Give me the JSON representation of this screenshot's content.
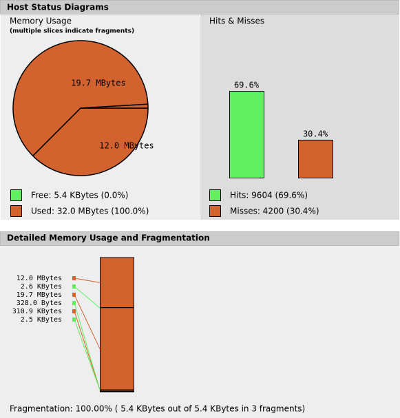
{
  "host_status": {
    "title": "Host Status Diagrams",
    "memory_usage": {
      "title": "Memory Usage",
      "subtitle": "(multiple slices indicate fragments)",
      "type": "pie",
      "slices": [
        {
          "label": "12.0 MBytes",
          "value": 12.0
        },
        {
          "label": "19.7 MBytes",
          "value": 19.7
        },
        {
          "label": null,
          "value": 0.3
        }
      ],
      "color": "#d2622e",
      "legend": [
        {
          "text": "Free: 5.4 KBytes (0.0%)",
          "color": "#60f060"
        },
        {
          "text": "Used: 32.0 MBytes (100.0%)",
          "color": "#d2622e"
        }
      ]
    },
    "hits_misses": {
      "title": "Hits & Misses",
      "type": "bar",
      "values": [
        69.6,
        30.4
      ],
      "value_labels": [
        "69.6%",
        "30.4%"
      ],
      "colors": [
        "#60f060",
        "#d2622e"
      ],
      "ylim": [
        0,
        100
      ],
      "legend": [
        {
          "text": "Hits: 9604 (69.6%)",
          "color": "#60f060"
        },
        {
          "text": "Misses: 4200 (30.4%)",
          "color": "#d2622e"
        }
      ]
    }
  },
  "fragmentation": {
    "title": "Detailed Memory Usage and Fragmentation",
    "type": "stacked-bar",
    "segments": [
      {
        "label": "12.0 MBytes",
        "value": 12.0,
        "color": "#d2622e"
      },
      {
        "label": "2.6 KBytes",
        "value": 0.0025,
        "color": "#60f060"
      },
      {
        "label": "19.7 MBytes",
        "value": 19.7,
        "color": "#d2622e"
      },
      {
        "label": "328.0 Bytes",
        "value": 0.0003,
        "color": "#60f060"
      },
      {
        "label": "310.9 KBytes",
        "value": 0.3,
        "color": "#d2622e"
      },
      {
        "label": "2.5 KBytes",
        "value": 0.0024,
        "color": "#60f060"
      }
    ],
    "summary": "Fragmentation: 100.00% ( 5.4 KBytes out of 5.4 KBytes in 3 fragments)"
  }
}
